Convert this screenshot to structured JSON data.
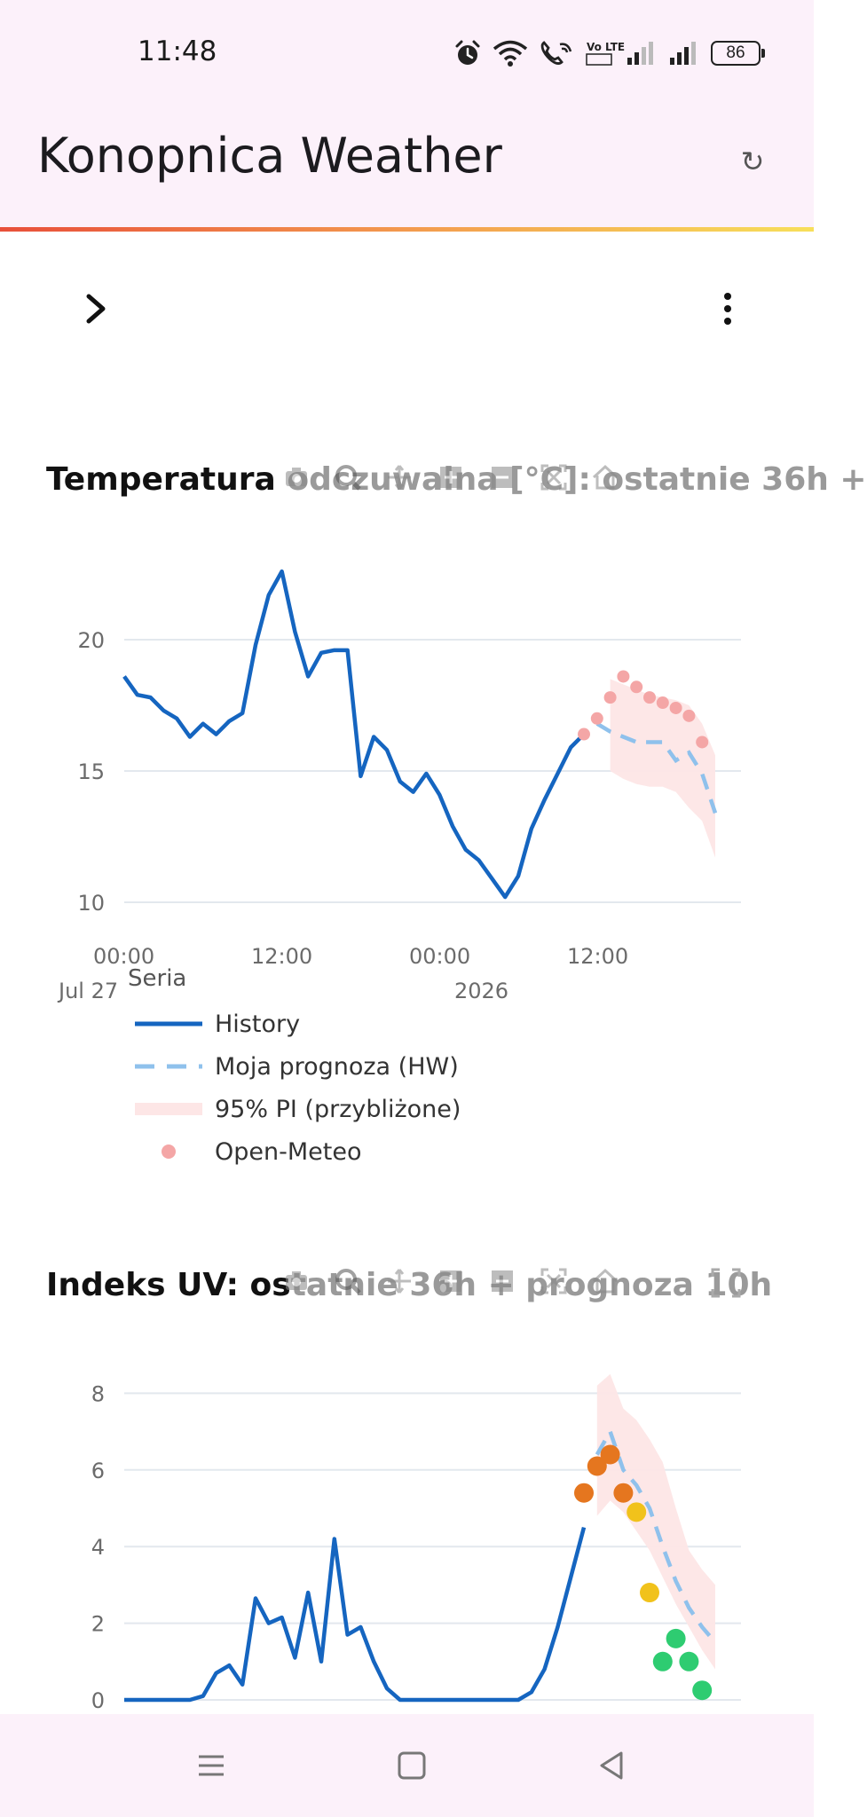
{
  "status_bar": {
    "time": "11:48",
    "volte_label": "Vo LTE",
    "battery": "86",
    "icons": [
      "alarm-icon",
      "wifi-icon",
      "wifi-call-icon",
      "volte-icon",
      "signal-icon",
      "signal-icon",
      "battery-icon"
    ]
  },
  "app_bar": {
    "title": "Konopnica Weather",
    "refresh_icon": "↻"
  },
  "colors": {
    "accent_start": "#e8503a",
    "accent_mid": "#f39a4e",
    "accent_end": "#f7df5a",
    "history": "#1565c0",
    "forecast": "#8fc1ec",
    "pi_band": "#fde6e6",
    "open_meteo": "#f4a6a6",
    "uv_high": "#e5761f",
    "uv_moderate": "#f1c21b",
    "uv_low": "#2ecc71"
  },
  "charts": {
    "temp": {
      "title_bold": "Temperatura",
      "title_faded": " odczuwalna [°C]: ostatnie 36h +"
    },
    "uv": {
      "title_bold": "Indeks UV: os",
      "title_faded": "tatnie 36h + prognoza 10h"
    }
  },
  "legend": {
    "title": "Seria",
    "items": [
      "History",
      "Moja prognoza (HW)",
      "95% PI (przybliżone)",
      "Open-Meteo"
    ]
  },
  "chart_data": [
    {
      "type": "line",
      "title": "Temperatura odczuwalna [°C]: ostatnie 36h +",
      "x_ticks": [
        "00:00",
        "12:00",
        "00:00",
        "12:00"
      ],
      "x_sublabels": [
        "Jul 27",
        "2026"
      ],
      "y_ticks": [
        10,
        15,
        20
      ],
      "ylim": [
        9.5,
        23.5
      ],
      "grid": true,
      "series": [
        {
          "name": "History",
          "x": [
            0,
            1,
            2,
            3,
            4,
            5,
            6,
            7,
            8,
            9,
            10,
            11,
            12,
            13,
            14,
            15,
            16,
            17,
            18,
            19,
            20,
            21,
            22,
            23,
            24,
            25,
            26,
            27,
            28,
            29,
            30,
            31,
            32,
            33,
            34,
            35
          ],
          "values": [
            18.6,
            17.9,
            17.8,
            17.3,
            17.0,
            16.3,
            16.8,
            16.4,
            16.9,
            17.2,
            19.8,
            21.7,
            22.6,
            20.3,
            18.6,
            19.5,
            19.6,
            19.6,
            14.8,
            16.3,
            15.8,
            14.6,
            14.2,
            14.9,
            14.1,
            12.9,
            12.0,
            11.6,
            10.9,
            10.2,
            11.0,
            12.8,
            13.9,
            14.9,
            15.9,
            16.4
          ]
        },
        {
          "name": "Moja prognoza (HW)",
          "x": [
            36,
            37,
            38,
            39,
            40,
            41,
            42,
            43,
            44,
            45
          ],
          "values": [
            16.8,
            16.5,
            16.3,
            16.1,
            16.1,
            16.1,
            15.4,
            15.7,
            14.9,
            13.4
          ]
        },
        {
          "name": "95% PI (przybliżone)",
          "x": [
            37,
            38,
            39,
            40,
            41,
            42,
            43,
            44,
            45
          ],
          "upper": [
            18.5,
            18.3,
            18.1,
            17.9,
            17.8,
            17.7,
            17.5,
            16.8,
            15.6
          ],
          "lower": [
            15.0,
            14.7,
            14.5,
            14.4,
            14.4,
            14.2,
            13.6,
            13.1,
            11.7
          ]
        },
        {
          "name": "Open-Meteo",
          "x": [
            35,
            36,
            37,
            38,
            39,
            40,
            41,
            42,
            43,
            44
          ],
          "values": [
            16.4,
            17.0,
            17.8,
            18.6,
            18.2,
            17.8,
            17.6,
            17.4,
            17.1,
            16.1
          ]
        }
      ]
    },
    {
      "type": "line",
      "title": "Indeks UV: ostatnie 36h + prognoza 10h",
      "y_ticks": [
        0,
        2,
        4,
        6,
        8
      ],
      "ylim": [
        0,
        8.8
      ],
      "grid": true,
      "series": [
        {
          "name": "History",
          "x": [
            0,
            1,
            2,
            3,
            4,
            5,
            6,
            7,
            8,
            9,
            10,
            11,
            12,
            13,
            14,
            15,
            16,
            17,
            18,
            19,
            20,
            21,
            22,
            23,
            24,
            25,
            26,
            27,
            28,
            29,
            30,
            31,
            32,
            33,
            34,
            35
          ],
          "values": [
            0,
            0,
            0,
            0,
            0,
            0,
            0.1,
            0.7,
            0.9,
            0.4,
            2.65,
            2.0,
            2.15,
            1.1,
            2.8,
            1.0,
            4.2,
            1.7,
            1.9,
            1.0,
            0.3,
            0,
            0,
            0,
            0,
            0,
            0,
            0,
            0,
            0,
            0,
            0.2,
            0.8,
            1.9,
            3.2,
            4.5
          ]
        },
        {
          "name": "Moja prognoza (HW)",
          "x": [
            36,
            37,
            38,
            39,
            40,
            41,
            42,
            43,
            44,
            45
          ],
          "values": [
            6.4,
            7.0,
            6.0,
            5.6,
            5.0,
            4.0,
            3.1,
            2.4,
            1.9,
            1.5
          ]
        },
        {
          "name": "95% PI (przybliżone)",
          "x": [
            36,
            37,
            38,
            39,
            40,
            41,
            42,
            43,
            44,
            45
          ],
          "upper": [
            8.2,
            8.5,
            7.6,
            7.3,
            6.8,
            6.2,
            5.0,
            3.9,
            3.4,
            3.0
          ],
          "lower": [
            4.8,
            5.2,
            4.9,
            4.4,
            3.9,
            3.2,
            2.5,
            1.9,
            1.3,
            0.8
          ]
        },
        {
          "name": "Open-Meteo",
          "x": [
            35,
            36,
            37,
            38,
            39,
            40,
            41,
            42,
            43,
            44
          ],
          "values": [
            5.4,
            6.1,
            6.4,
            5.4,
            4.9,
            2.8,
            1.0,
            1.6,
            1.0,
            0.25
          ]
        }
      ]
    }
  ],
  "nav_bar": {
    "icons": [
      "menu-icon",
      "home-square-icon",
      "back-triangle-icon"
    ]
  }
}
